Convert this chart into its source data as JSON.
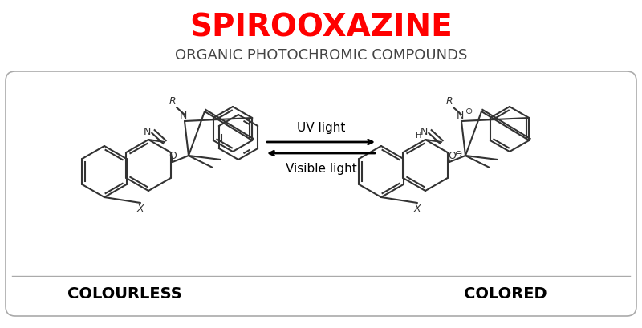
{
  "title": "SPIROOXAZINE",
  "subtitle": "ORGANIC PHOTOCHROMIC COMPOUNDS",
  "title_color": "#FF0000",
  "subtitle_color": "#444444",
  "background_color": "#FFFFFF",
  "box_color": "#CCCCCC",
  "label_left": "COLOURLESS",
  "label_right": "COLORED",
  "arrow_up_label": "UV light",
  "arrow_down_label": "Visible light",
  "line_color": "#333333",
  "text_color": "#000000",
  "figsize": [
    8.0,
    4.09
  ],
  "dpi": 100
}
